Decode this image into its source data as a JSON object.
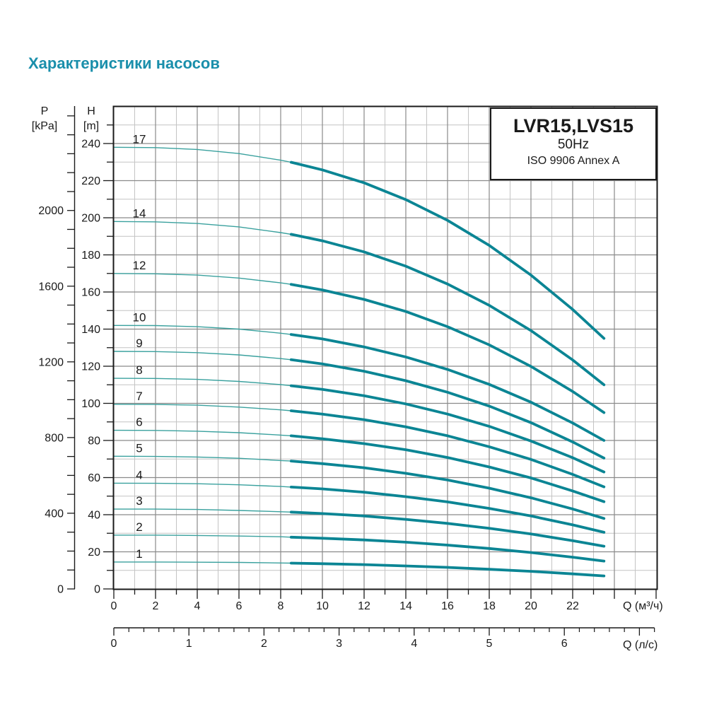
{
  "title": "Характеристики насосов",
  "legend": {
    "model": "LVR15,LVS15",
    "frequency": "50Hz",
    "standard": "ISO 9906 Annex A"
  },
  "axes": {
    "pressure": {
      "name": "P",
      "unit": "[kPa]",
      "labels": [
        0,
        400,
        800,
        1200,
        1600,
        2000
      ],
      "tick_step": 100,
      "max": 2500
    },
    "head": {
      "name": "H",
      "unit": "[m]",
      "labels": [
        0,
        20,
        40,
        60,
        80,
        100,
        120,
        140,
        160,
        180,
        200,
        220,
        240
      ],
      "minor_step": 10,
      "max": 260
    },
    "flow_m3h": {
      "label": "Q (м³/ч)",
      "labels": [
        0,
        2,
        4,
        6,
        8,
        10,
        12,
        14,
        16,
        18,
        20,
        22
      ],
      "minor_step": 1,
      "major_step": 2,
      "max": 26
    },
    "flow_ls": {
      "label": "Q (л/с)",
      "labels": [
        0,
        1,
        2,
        3,
        4,
        5,
        6
      ],
      "minor_step": 0.2,
      "major_step": 1,
      "max": 7.2
    }
  },
  "chart_data": {
    "type": "line",
    "title": "LVR15,LVS15 50Hz ISO 9906 Annex A",
    "xlabel": "Q (м³/ч)",
    "ylabel": "H [m]",
    "xlim": [
      0,
      26
    ],
    "ylim": [
      0,
      260
    ],
    "grid": "on",
    "legend_position": "top-right",
    "x_m3h": [
      0,
      2,
      4,
      6,
      8,
      8.5,
      10,
      12,
      14,
      16,
      18,
      20,
      22,
      23.5
    ],
    "duty_split_m3h": 8.5,
    "series": [
      {
        "stages": "1",
        "head_m": [
          14.5,
          14.5,
          14.4,
          14.3,
          14.0,
          13.9,
          13.6,
          13.1,
          12.4,
          11.6,
          10.6,
          9.5,
          8.1,
          7.0
        ]
      },
      {
        "stages": "2",
        "head_m": [
          29.0,
          29.0,
          28.8,
          28.5,
          28.1,
          27.9,
          27.3,
          26.4,
          25.2,
          23.6,
          21.8,
          19.6,
          17.1,
          15.0
        ]
      },
      {
        "stages": "3",
        "head_m": [
          43.0,
          43.0,
          42.8,
          42.3,
          41.6,
          41.4,
          40.6,
          39.3,
          37.5,
          35.3,
          32.7,
          29.6,
          26.0,
          23.0
        ]
      },
      {
        "stages": "4",
        "head_m": [
          57.0,
          56.9,
          56.7,
          56.1,
          55.2,
          54.9,
          53.9,
          52.1,
          49.7,
          46.9,
          43.4,
          39.3,
          34.5,
          30.5
        ]
      },
      {
        "stages": "5",
        "head_m": [
          71.5,
          71.4,
          71.1,
          70.4,
          69.2,
          68.9,
          67.5,
          65.3,
          62.3,
          58.7,
          54.3,
          49.1,
          43.1,
          38.0
        ]
      },
      {
        "stages": "6",
        "head_m": [
          85.5,
          85.4,
          85.0,
          84.2,
          82.9,
          82.5,
          80.9,
          78.3,
          75.0,
          70.8,
          65.7,
          59.8,
          52.8,
          47.0
        ]
      },
      {
        "stages": "7",
        "head_m": [
          99.5,
          99.4,
          99.0,
          98.0,
          96.5,
          96.0,
          94.2,
          91.2,
          87.3,
          82.5,
          76.6,
          69.8,
          61.7,
          55.0
        ]
      },
      {
        "stages": "8",
        "head_m": [
          113.5,
          113.4,
          112.9,
          111.8,
          110.1,
          109.5,
          107.5,
          104.1,
          99.7,
          94.2,
          87.6,
          79.7,
          70.7,
          63.0
        ]
      },
      {
        "stages": "9",
        "head_m": [
          128.0,
          127.9,
          127.3,
          126.1,
          124.1,
          123.5,
          121.2,
          117.3,
          112.2,
          106.0,
          98.5,
          89.6,
          79.2,
          70.5
        ]
      },
      {
        "stages": "10",
        "head_m": [
          142.0,
          141.9,
          141.3,
          140.0,
          137.8,
          137.1,
          134.7,
          130.4,
          125.0,
          118.3,
          110.2,
          100.6,
          89.4,
          80.0
        ]
      },
      {
        "stages": "12",
        "head_m": [
          170.0,
          169.8,
          169.1,
          167.5,
          164.9,
          164.1,
          161.1,
          156.0,
          149.5,
          141.3,
          131.5,
          119.9,
          106.4,
          95.0
        ]
      },
      {
        "stages": "14",
        "head_m": [
          198.0,
          197.8,
          196.9,
          195.1,
          192.0,
          191.1,
          187.6,
          181.6,
          173.9,
          164.3,
          152.8,
          139.2,
          123.4,
          110.0
        ]
      },
      {
        "stages": "17",
        "head_m": [
          238.0,
          237.8,
          236.8,
          234.6,
          231.0,
          229.9,
          225.8,
          218.8,
          209.8,
          198.6,
          185.1,
          169.1,
          150.6,
          135.0
        ]
      }
    ]
  },
  "colors": {
    "title": "#1a8fab",
    "curve_thin": "#3aa19e",
    "curve_thick": "#0b8594",
    "grid_major": "#8a8a8a",
    "grid_minor": "#c4c4c4",
    "axis": "#1a1a1a"
  }
}
